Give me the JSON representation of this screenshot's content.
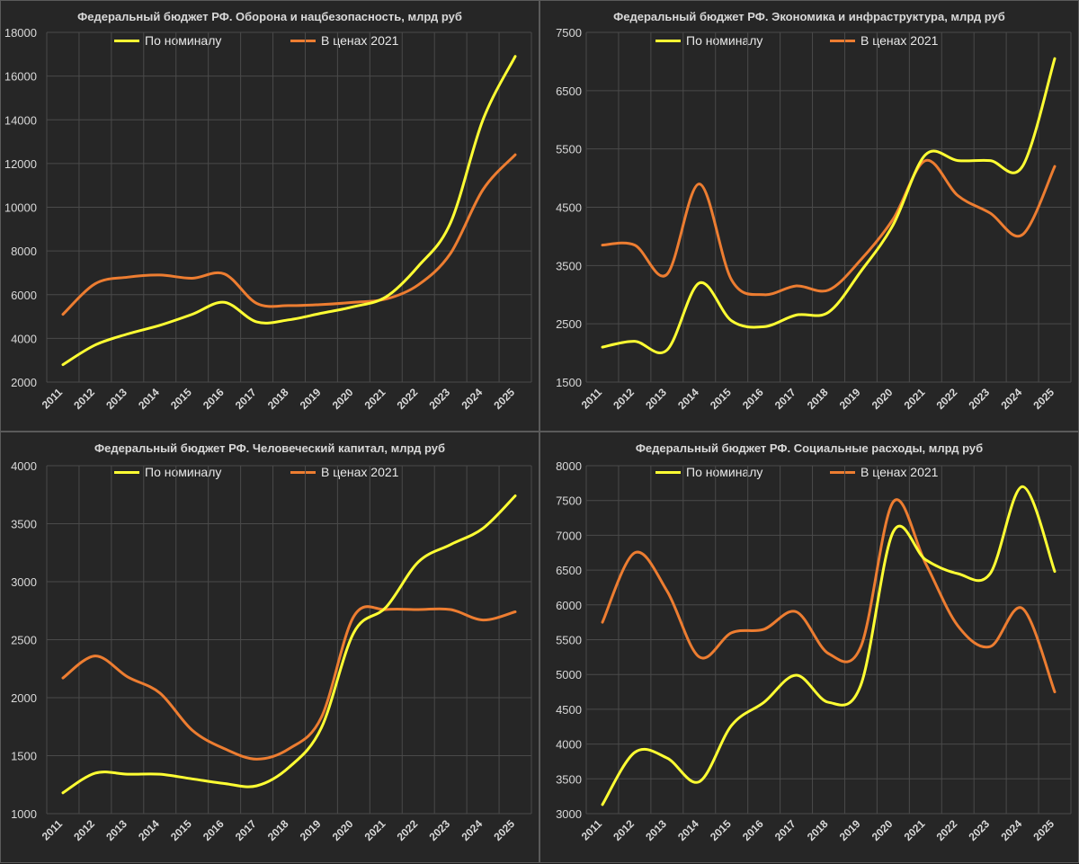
{
  "colors": {
    "nominal": "#ffff33",
    "real": "#ed7d31",
    "background": "#262626",
    "grid": "#4a4a4a",
    "text": "#d9d9d9"
  },
  "chart_data": [
    {
      "type": "line",
      "title": "Федеральный бюджет РФ. Оборона и нацбезопасность, млрд руб",
      "x": [
        "2011",
        "2012",
        "2013",
        "2014",
        "2015",
        "2016",
        "2017",
        "2018",
        "2019",
        "2020",
        "2021",
        "2022",
        "2023",
        "2024",
        "2025"
      ],
      "ylim": [
        2000,
        18000
      ],
      "yticks": [
        2000,
        4000,
        6000,
        8000,
        10000,
        12000,
        14000,
        16000,
        18000
      ],
      "series": [
        {
          "name": "По номиналу",
          "values": [
            2800,
            3700,
            4200,
            4600,
            5100,
            5650,
            4750,
            4850,
            5150,
            5450,
            5900,
            7300,
            9300,
            14000,
            16900
          ]
        },
        {
          "name": "В ценах 2021",
          "values": [
            5100,
            6500,
            6800,
            6900,
            6750,
            6950,
            5600,
            5500,
            5550,
            5650,
            5800,
            6450,
            7900,
            10800,
            12400
          ]
        }
      ]
    },
    {
      "type": "line",
      "title": "Федеральный бюджет РФ. Экономика и инфраструктура, млрд руб",
      "x": [
        "2011",
        "2012",
        "2013",
        "2014",
        "2015",
        "2016",
        "2017",
        "2018",
        "2019",
        "2020",
        "2021",
        "2022",
        "2023",
        "2024",
        "2025"
      ],
      "ylim": [
        1500,
        7500
      ],
      "yticks": [
        1500,
        2500,
        3500,
        4500,
        5500,
        6500,
        7500
      ],
      "series": [
        {
          "name": "По номиналу",
          "values": [
            2100,
            2200,
            2050,
            3200,
            2550,
            2450,
            2650,
            2700,
            3400,
            4200,
            5400,
            5300,
            5300,
            5200,
            7050
          ]
        },
        {
          "name": "В ценах 2021",
          "values": [
            3850,
            3850,
            3350,
            4900,
            3250,
            3000,
            3150,
            3080,
            3600,
            4300,
            5300,
            4700,
            4400,
            4030,
            5200
          ]
        }
      ]
    },
    {
      "type": "line",
      "title": "Федеральный бюджет РФ. Человеческий капитал, млрд руб",
      "x": [
        "2011",
        "2012",
        "2013",
        "2014",
        "2015",
        "2016",
        "2017",
        "2018",
        "2019",
        "2020",
        "2021",
        "2022",
        "2023",
        "2024",
        "2025"
      ],
      "ylim": [
        1000,
        4000
      ],
      "yticks": [
        1000,
        1500,
        2000,
        2500,
        3000,
        3500,
        4000
      ],
      "series": [
        {
          "name": "По номиналу",
          "values": [
            1180,
            1350,
            1340,
            1340,
            1300,
            1260,
            1240,
            1400,
            1740,
            2560,
            2780,
            3170,
            3320,
            3460,
            3740
          ]
        },
        {
          "name": "В ценах 2021",
          "values": [
            2170,
            2360,
            2180,
            2040,
            1720,
            1560,
            1470,
            1560,
            1830,
            2700,
            2760,
            2760,
            2760,
            2670,
            2740
          ]
        }
      ]
    },
    {
      "type": "line",
      "title": "Федеральный бюджет РФ. Социальные расходы, млрд руб",
      "x": [
        "2011",
        "2012",
        "2013",
        "2014",
        "2015",
        "2016",
        "2017",
        "2018",
        "2019",
        "2020",
        "2021",
        "2022",
        "2023",
        "2024",
        "2025"
      ],
      "ylim": [
        3000,
        8000
      ],
      "yticks": [
        3000,
        3500,
        4000,
        4500,
        5000,
        5500,
        6000,
        6500,
        7000,
        7500,
        8000
      ],
      "series": [
        {
          "name": "По номиналу",
          "values": [
            3130,
            3880,
            3800,
            3460,
            4270,
            4600,
            4990,
            4600,
            4850,
            7050,
            6650,
            6450,
            6450,
            7700,
            6480
          ]
        },
        {
          "name": "В ценах 2021",
          "values": [
            5750,
            6750,
            6200,
            5250,
            5600,
            5650,
            5900,
            5300,
            5400,
            7480,
            6600,
            5700,
            5400,
            5950,
            4750
          ]
        }
      ]
    }
  ]
}
